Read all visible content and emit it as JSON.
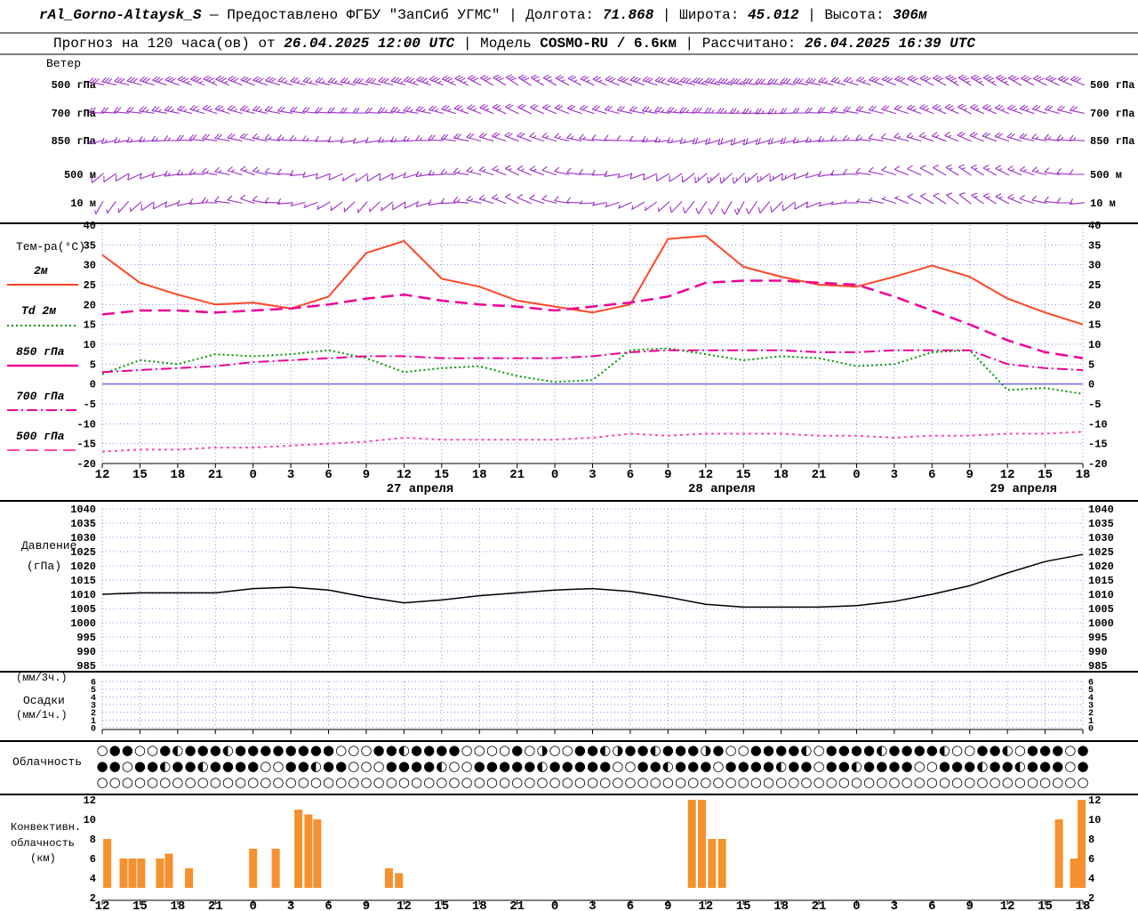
{
  "header": {
    "line1": {
      "station": "rAl_Gorno-Altaysk_S",
      "provided": " — Предоставлено ФГБУ \"ЗапСиб УГМС\" | ",
      "lon_label": "Долгота: ",
      "lon_value": "71.868",
      "sep1": " | ",
      "lat_label": "Широта: ",
      "lat_value": "45.012",
      "sep2": " | ",
      "alt_label": "Высота: ",
      "alt_value": "306м"
    },
    "line2": {
      "forecast_label": "Прогноз на 120 часа(ов) от ",
      "run_time": "26.04.2025 12:00 UTC",
      "model_label": " | Модель ",
      "model_value": "COSMO-RU / 6.6км",
      "calc_label": " | Рассчитано: ",
      "calc_value": "26.04.2025 16:39 UTC"
    }
  },
  "labels": {
    "wind_panel": "Ветер",
    "temp_panel": "Тем-ра(°C)",
    "pressure_line1": "Давление",
    "pressure_line2": "(гПа)",
    "precip_line1": "(мм/3ч.)",
    "precip_line2": "Осадки",
    "precip_line3": "(мм/1ч.)",
    "cloud_panel": "Облачность",
    "conv_line1": "Конвективн.",
    "conv_line2": "облачность",
    "conv_line3": "(км)"
  },
  "chart_data": {
    "type": "meteogram",
    "hours_span": 78,
    "time_axis": {
      "step_hours": 3,
      "ticks": [
        "12",
        "15",
        "18",
        "21",
        "0",
        "3",
        "6",
        "9",
        "12",
        "15",
        "18",
        "21",
        "0",
        "3",
        "6",
        "9",
        "12",
        "15",
        "18",
        "21",
        "0",
        "3",
        "6",
        "9",
        "12",
        "15",
        "18"
      ],
      "dates": [
        {
          "label": "27 апреля",
          "center_tick": 8
        },
        {
          "label": "28 апреля",
          "center_tick": 16
        },
        {
          "label": "29 апреля",
          "center_tick": 24
        }
      ]
    },
    "wind": {
      "color": "#9a30c8",
      "levels": [
        {
          "label": "500 гПа",
          "dir": [
            280,
            285,
            290,
            295,
            290,
            285,
            282,
            280,
            285,
            292,
            298,
            303,
            300,
            295,
            290,
            286,
            282,
            278,
            276,
            280,
            286,
            292,
            297,
            302,
            300,
            296,
            292
          ],
          "speed": [
            28,
            30,
            32,
            34,
            30,
            27,
            25,
            28,
            33,
            35,
            32,
            29,
            26,
            25,
            29,
            32,
            35,
            33,
            30,
            28,
            26,
            29,
            31,
            34,
            33,
            30,
            28
          ]
        },
        {
          "label": "700 гПа",
          "dir": [
            272,
            276,
            282,
            288,
            284,
            279,
            274,
            270,
            276,
            284,
            292,
            297,
            293,
            288,
            282,
            277,
            272,
            268,
            266,
            272,
            279,
            286,
            292,
            296,
            292,
            287,
            282
          ],
          "speed": [
            20,
            22,
            25,
            27,
            24,
            21,
            18,
            20,
            24,
            27,
            25,
            22,
            19,
            18,
            21,
            25,
            28,
            26,
            23,
            20,
            18,
            21,
            24,
            26,
            25,
            22,
            20
          ]
        },
        {
          "label": "850 гПа",
          "dir": [
            255,
            262,
            270,
            278,
            283,
            275,
            266,
            258,
            264,
            274,
            284,
            291,
            286,
            278,
            270,
            262,
            255,
            250,
            254,
            262,
            272,
            282,
            289,
            293,
            288,
            280,
            272
          ],
          "speed": [
            12,
            14,
            17,
            20,
            18,
            15,
            12,
            10,
            14,
            18,
            21,
            19,
            16,
            13,
            11,
            14,
            18,
            21,
            19,
            16,
            13,
            12,
            15,
            18,
            20,
            17,
            14
          ]
        },
        {
          "label": "500 м",
          "dir": [
            230,
            245,
            262,
            278,
            290,
            272,
            250,
            235,
            248,
            266,
            284,
            296,
            288,
            272,
            255,
            240,
            230,
            226,
            238,
            255,
            272,
            288,
            298,
            304,
            296,
            284,
            270
          ],
          "speed": [
            8,
            10,
            13,
            16,
            14,
            11,
            8,
            7,
            10,
            14,
            17,
            15,
            12,
            9,
            7,
            9,
            13,
            16,
            14,
            11,
            8,
            8,
            11,
            14,
            16,
            13,
            10
          ]
        },
        {
          "label": "10 м",
          "dir": [
            210,
            228,
            250,
            272,
            288,
            265,
            240,
            220,
            238,
            260,
            282,
            296,
            285,
            266,
            245,
            228,
            214,
            208,
            225,
            248,
            270,
            288,
            300,
            308,
            298,
            282,
            264
          ],
          "speed": [
            5,
            7,
            10,
            13,
            11,
            8,
            6,
            5,
            8,
            11,
            14,
            12,
            9,
            7,
            5,
            7,
            10,
            13,
            11,
            8,
            6,
            6,
            9,
            12,
            14,
            11,
            8
          ]
        }
      ]
    },
    "temperature": {
      "ylim": [
        -20,
        40
      ],
      "ytick_step": 5,
      "series": [
        {
          "name": "2м",
          "color": "#ff4626",
          "style": "solid",
          "legend_style": "solid",
          "width": 2,
          "values": [
            32.5,
            25.5,
            22.5,
            20,
            20.5,
            19,
            22,
            33,
            36,
            26.5,
            24.5,
            21,
            19.5,
            18,
            20,
            36.5,
            37.3,
            29.5,
            27,
            25,
            24.5,
            27,
            29.8,
            27,
            21.5,
            18,
            15
          ]
        },
        {
          "name": "Td 2м",
          "color": "#009600",
          "style": "dotted",
          "legend_style": "dotted",
          "width": 2,
          "values": [
            2.5,
            6,
            5,
            7.5,
            7,
            7.5,
            8.5,
            6.5,
            3,
            4,
            4.5,
            2,
            0.5,
            1,
            8.5,
            9,
            7.5,
            6,
            7,
            6.5,
            4.5,
            5,
            8,
            8.5,
            -1.5,
            -1,
            -2.5
          ]
        },
        {
          "name": "850 гПа",
          "color": "#ee0096",
          "style": "dashed",
          "legend_style": "solid",
          "width": 2.5,
          "values": [
            17.5,
            18.5,
            18.5,
            18,
            18.5,
            19,
            20,
            21.5,
            22.5,
            21,
            20,
            19.5,
            18.5,
            19.5,
            20.5,
            22,
            25.5,
            26,
            26,
            25.5,
            25,
            22,
            18.5,
            15,
            11,
            8,
            6.5
          ]
        },
        {
          "name": "700 гПа",
          "color": "#ee0096",
          "style": "dashdot",
          "legend_style": "dashdot",
          "width": 2,
          "values": [
            3,
            3.5,
            4,
            4.5,
            5.5,
            6,
            6.5,
            7,
            7,
            6.5,
            6.5,
            6.5,
            6.5,
            7,
            8,
            8.5,
            8.5,
            8.5,
            8.5,
            8,
            8,
            8.5,
            8.5,
            8.5,
            5,
            4,
            3.5
          ]
        },
        {
          "name": "500 гПа",
          "color": "#ff46aa",
          "style": "dotted2",
          "legend_style": "dashed",
          "width": 2,
          "values": [
            -17,
            -16.5,
            -16.5,
            -16,
            -16,
            -15.5,
            -15,
            -14.5,
            -13.5,
            -14,
            -14,
            -14,
            -14,
            -13.5,
            -12.5,
            -13,
            -12.5,
            -12.5,
            -12.5,
            -13,
            -13,
            -13.5,
            -13,
            -13,
            -12.5,
            -12.5,
            -12
          ]
        }
      ]
    },
    "pressure": {
      "ylim": [
        985,
        1040
      ],
      "ytick_step": 5,
      "color": "#000000",
      "values": [
        1010,
        1010.5,
        1010.5,
        1010.5,
        1012,
        1012.5,
        1011.5,
        1009,
        1007,
        1008,
        1009.5,
        1010.5,
        1011.5,
        1012,
        1011,
        1009,
        1006.5,
        1005.5,
        1005.5,
        1005.5,
        1006,
        1007.5,
        1010,
        1013,
        1017.5,
        1021.5,
        1024
      ]
    },
    "precipitation": {
      "ylim": [
        0,
        6
      ],
      "bars": []
    },
    "cloudiness": {
      "rows": [
        "○●●○○●◐●●●◐●●●●●●●●○○○●●◐●●●●○○○○●○◑○○●●◐◑●●◐●●●◑●○○●●●●◐○●●●●◐●●●●◐○○●●◐○●●●○●",
        "●●○●●◐●●◐●●●●○○●●◐●●○○○●●●●◐○○●●●●●◐●●●●●○○●●◐●●●○●●●●◐●●○●●◐●●●●○○●●●◐●●◐●●●○●",
        "○○○○○○○○○○○○○○○○○○○○○○○○○○○○○○○○○○○○○○○○○○○○○○○○○○○○○○○○○○○○○○○○○○○○○○○○○○○○○○○"
      ]
    },
    "convective": {
      "ylim": [
        2,
        12
      ],
      "ytick_step": 2,
      "baseline": 3,
      "color": "#f5912e",
      "bars": [
        {
          "t": 0.4,
          "h": 8
        },
        {
          "t": 1.7,
          "h": 6
        },
        {
          "t": 2.4,
          "h": 6
        },
        {
          "t": 3.1,
          "h": 6
        },
        {
          "t": 4.6,
          "h": 6
        },
        {
          "t": 5.3,
          "h": 6.5
        },
        {
          "t": 6.9,
          "h": 5
        },
        {
          "t": 12.0,
          "h": 7
        },
        {
          "t": 13.8,
          "h": 7
        },
        {
          "t": 15.6,
          "h": 11
        },
        {
          "t": 16.4,
          "h": 10.5
        },
        {
          "t": 17.1,
          "h": 10
        },
        {
          "t": 22.8,
          "h": 5
        },
        {
          "t": 23.6,
          "h": 4.5
        },
        {
          "t": 46.9,
          "h": 12
        },
        {
          "t": 47.7,
          "h": 12
        },
        {
          "t": 48.5,
          "h": 8
        },
        {
          "t": 49.3,
          "h": 8
        },
        {
          "t": 76.1,
          "h": 10
        },
        {
          "t": 77.3,
          "h": 6
        },
        {
          "t": 77.9,
          "h": 12
        }
      ]
    }
  }
}
